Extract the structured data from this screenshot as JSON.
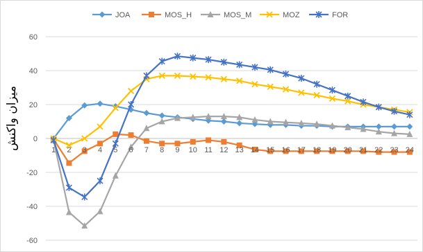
{
  "chart_data": {
    "type": "line",
    "title": "",
    "xlabel": "",
    "ylabel": "میزان واکنش",
    "ylim": [
      -60,
      60
    ],
    "yticks": [
      -60,
      -40,
      -20,
      0,
      20,
      40,
      60
    ],
    "grid": true,
    "legend": "top",
    "categories": [
      "1",
      "2",
      "3",
      "4",
      "5",
      "6",
      "7",
      "8",
      "9",
      "10",
      "11",
      "12",
      "13",
      "14",
      "15",
      "16",
      "17",
      "18",
      "19",
      "20",
      "21",
      "22",
      "23",
      "24"
    ],
    "series": [
      {
        "name": "JOA",
        "color": "#5B9BD5",
        "marker": "diamond",
        "values": [
          0,
          12,
          19.5,
          20.5,
          19,
          17,
          15,
          13.5,
          12.5,
          11.5,
          10.5,
          10,
          9,
          8.5,
          8,
          8,
          7.5,
          7.5,
          7,
          7,
          7,
          7,
          7,
          7
        ]
      },
      {
        "name": "MOS_H",
        "color": "#ED7D31",
        "marker": "square",
        "values": [
          -0.5,
          -14.5,
          -7.5,
          -3,
          2.5,
          2,
          -1.5,
          -3,
          -3,
          -2,
          -1,
          -2,
          -4,
          -6.5,
          -7.5,
          -7.5,
          -7.5,
          -7.5,
          -7.5,
          -7.5,
          -7.5,
          -8,
          -8,
          -8
        ]
      },
      {
        "name": "MOS_M",
        "color": "#A5A5A5",
        "marker": "triangle",
        "values": [
          -1,
          -43.5,
          -51.5,
          -43,
          -22,
          -5,
          6,
          10,
          12,
          12.5,
          13,
          13,
          12.5,
          11,
          10,
          9.5,
          9,
          8.5,
          7.5,
          6.5,
          5.5,
          4,
          3,
          2.5
        ]
      },
      {
        "name": "MOZ",
        "color": "#FFC000",
        "marker": "x",
        "values": [
          0,
          -4,
          0,
          7,
          18,
          28,
          35,
          37,
          37,
          36.5,
          36,
          35,
          34,
          32,
          30.5,
          29,
          27,
          25.5,
          23.5,
          22,
          20,
          18.5,
          17,
          15.5
        ]
      },
      {
        "name": "FOR",
        "color": "#4472C4",
        "marker": "star",
        "values": [
          -1,
          -29,
          -34.5,
          -25,
          -3,
          20,
          37,
          45.5,
          48.5,
          47.5,
          46.5,
          45,
          43.5,
          42,
          40.5,
          38,
          35.5,
          32,
          28.5,
          25,
          21.5,
          18.5,
          16,
          14
        ]
      }
    ]
  }
}
